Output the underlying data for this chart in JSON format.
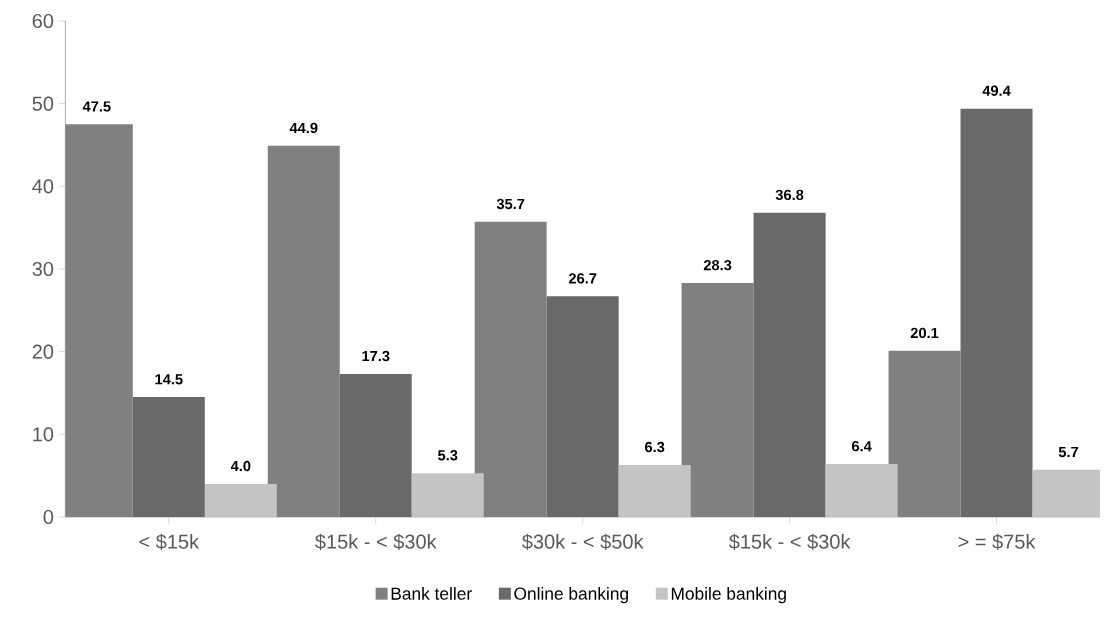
{
  "chart_data": {
    "type": "bar",
    "categories": [
      "< $15k",
      "$15k - < $30k",
      "$30k - < $50k",
      "$15k - < $30k",
      "> = $75k"
    ],
    "series": [
      {
        "name": "Bank teller",
        "color": "#808080",
        "values": [
          47.5,
          44.9,
          35.7,
          28.3,
          20.1
        ],
        "value_labels": [
          "47.5",
          "44.9",
          "35.7",
          "28.3",
          "20.1"
        ]
      },
      {
        "name": "Online banking",
        "color": "#696969",
        "values": [
          14.5,
          17.3,
          26.7,
          36.8,
          49.4
        ],
        "value_labels": [
          "14.5",
          "17.3",
          "26.7",
          "36.8",
          "49.4"
        ]
      },
      {
        "name": "Mobile banking",
        "color": "#c4c4c4",
        "values": [
          4.0,
          5.3,
          6.3,
          6.4,
          5.7
        ],
        "value_labels": [
          "4.0",
          "5.3",
          "6.3",
          "6.4",
          "5.7"
        ]
      }
    ],
    "ylim": [
      0,
      60
    ],
    "yticks": [
      0,
      10,
      20,
      30,
      40,
      50,
      60
    ],
    "legend": "bottom"
  }
}
